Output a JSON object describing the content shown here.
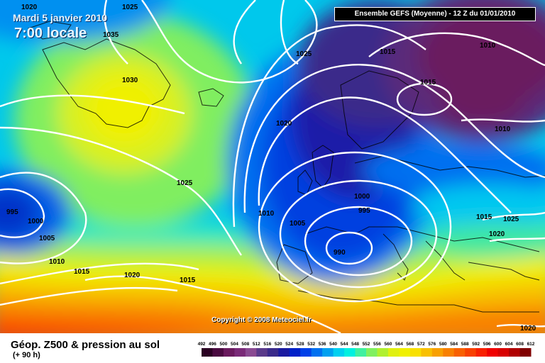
{
  "header": {
    "date": "Mardi 5 janvier 2010",
    "time": "7:00 locale",
    "ensemble": "Ensemble GEFS (Moyenne)   -  12 Z du 01/01/2010"
  },
  "copyright": "Copyright © 2008 Meteociel.fr",
  "footer": {
    "title": "Géop. Z500 & pression au sol",
    "subtitle": "(+ 90 h)"
  },
  "isobar_labels": [
    {
      "id": "l1020a",
      "text": "1020"
    },
    {
      "id": "l1025a",
      "text": "1025"
    },
    {
      "id": "l1035",
      "text": "1035"
    },
    {
      "id": "l1030",
      "text": "1030"
    },
    {
      "id": "l1025b",
      "text": "1025"
    },
    {
      "id": "l1015a",
      "text": "1015"
    },
    {
      "id": "l1010a",
      "text": "1010"
    },
    {
      "id": "l1015b",
      "text": "1015"
    },
    {
      "id": "l1010b",
      "text": "1010"
    },
    {
      "id": "l1020b",
      "text": "1020"
    },
    {
      "id": "l1025c",
      "text": "1025"
    },
    {
      "id": "l995a",
      "text": "995"
    },
    {
      "id": "l1000a",
      "text": "1000"
    },
    {
      "id": "l1005a",
      "text": "1005"
    },
    {
      "id": "l1010c",
      "text": "1010"
    },
    {
      "id": "l1015c",
      "text": "1015"
    },
    {
      "id": "l1020c",
      "text": "1020"
    },
    {
      "id": "l1015d",
      "text": "1015"
    },
    {
      "id": "l1010d",
      "text": "1010"
    },
    {
      "id": "l1005b",
      "text": "1005"
    },
    {
      "id": "l1000b",
      "text": "1000"
    },
    {
      "id": "l995b",
      "text": "995"
    },
    {
      "id": "l990",
      "text": "990"
    },
    {
      "id": "l1015e",
      "text": "1015"
    },
    {
      "id": "l1025d",
      "text": "1025"
    },
    {
      "id": "l1020d",
      "text": "1020"
    },
    {
      "id": "l1020e",
      "text": "1020"
    }
  ],
  "colorbar": {
    "ticks": [
      "492",
      "496",
      "500",
      "504",
      "508",
      "512",
      "516",
      "520",
      "524",
      "528",
      "532",
      "536",
      "540",
      "544",
      "548",
      "552",
      "556",
      "560",
      "564",
      "568",
      "572",
      "576",
      "580",
      "584",
      "588",
      "592",
      "596",
      "600",
      "604",
      "608",
      "612"
    ],
    "colors": [
      "#2a0022",
      "#4a0a40",
      "#6a1a5e",
      "#7a2a78",
      "#8a4a92",
      "#5a3a8a",
      "#3a2a8a",
      "#1a1aa0",
      "#0020c8",
      "#0040e8",
      "#0070f0",
      "#00a0f0",
      "#00d0f0",
      "#00f0e0",
      "#40f0a0",
      "#80f060",
      "#b0f030",
      "#e0f010",
      "#f0f000",
      "#f8e000",
      "#f8c000",
      "#f8a000",
      "#f88000",
      "#f86000",
      "#f84000",
      "#f82000",
      "#f00000",
      "#d80000",
      "#b00000",
      "#800000"
    ]
  }
}
